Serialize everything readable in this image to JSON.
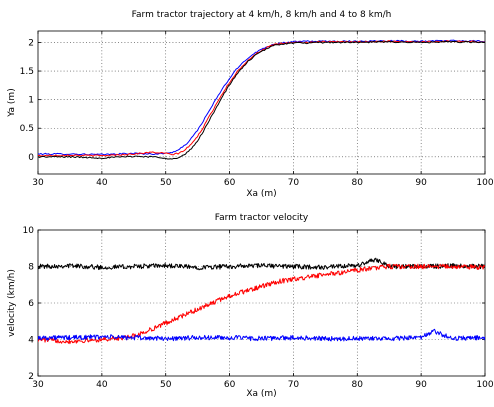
{
  "chart_data": [
    {
      "type": "line",
      "title": "Farm tractor trajectory at 4 km/h, 8 km/h and 4 to 8 km/h",
      "xlabel": "Xa (m)",
      "ylabel": "Ya (m)",
      "xlim": [
        30,
        100
      ],
      "ylim": [
        -0.3,
        2.2
      ],
      "xticks": [
        "30",
        "40",
        "50",
        "60",
        "70",
        "80",
        "90",
        "100"
      ],
      "yticks": [
        "0",
        "0.5",
        "1",
        "1.5",
        "2"
      ],
      "grid": true,
      "series": [
        {
          "color": "#0000ff",
          "x": [
            30,
            35,
            40,
            45,
            48,
            50,
            51,
            52,
            53,
            54,
            55,
            56,
            57,
            58,
            59,
            60,
            61,
            62,
            63,
            64,
            65,
            66,
            67,
            68,
            69,
            70,
            72,
            75,
            80,
            85,
            90,
            95,
            100
          ],
          "y": [
            0.05,
            0.05,
            0.04,
            0.06,
            0.05,
            0.06,
            0.08,
            0.12,
            0.2,
            0.32,
            0.47,
            0.65,
            0.84,
            1.03,
            1.21,
            1.37,
            1.52,
            1.64,
            1.74,
            1.82,
            1.88,
            1.93,
            1.97,
            1.99,
            2.0,
            2.01,
            2.02,
            2.02,
            2.02,
            2.03,
            2.02,
            2.03,
            2.02
          ]
        },
        {
          "color": "#ff0000",
          "x": [
            30,
            35,
            40,
            45,
            48,
            50,
            51,
            52,
            53,
            54,
            55,
            56,
            57,
            58,
            59,
            60,
            61,
            62,
            63,
            64,
            65,
            66,
            67,
            68,
            69,
            70,
            72,
            75,
            80,
            85,
            90,
            95,
            100
          ],
          "y": [
            0.02,
            0.03,
            0.02,
            0.05,
            0.08,
            0.06,
            0.04,
            0.06,
            0.12,
            0.22,
            0.36,
            0.54,
            0.74,
            0.94,
            1.13,
            1.3,
            1.46,
            1.59,
            1.7,
            1.79,
            1.86,
            1.92,
            1.96,
            1.98,
            1.99,
            2.0,
            2.0,
            2.01,
            2.01,
            2.02,
            2.01,
            2.02,
            2.01
          ]
        },
        {
          "color": "#000000",
          "x": [
            30,
            35,
            40,
            45,
            48,
            50,
            51,
            52,
            53,
            54,
            55,
            56,
            57,
            58,
            59,
            60,
            61,
            62,
            63,
            64,
            65,
            66,
            67,
            68,
            69,
            70,
            72,
            75,
            80,
            85,
            90,
            95,
            100
          ],
          "y": [
            0.0,
            0.0,
            -0.02,
            0.01,
            0.0,
            -0.02,
            -0.04,
            -0.02,
            0.04,
            0.14,
            0.28,
            0.47,
            0.67,
            0.88,
            1.08,
            1.26,
            1.42,
            1.56,
            1.68,
            1.77,
            1.84,
            1.9,
            1.95,
            1.97,
            1.98,
            1.99,
            1.99,
            2.0,
            2.0,
            2.01,
            2.0,
            2.01,
            2.0
          ]
        }
      ]
    },
    {
      "type": "line",
      "title": "Farm tractor velocity",
      "xlabel": "Xa (m)",
      "ylabel": "velocity (km/h)",
      "xlim": [
        30,
        100
      ],
      "ylim": [
        2,
        10
      ],
      "xticks": [
        "30",
        "40",
        "50",
        "60",
        "70",
        "80",
        "90",
        "100"
      ],
      "yticks": [
        "2",
        "4",
        "6",
        "8",
        "10"
      ],
      "grid": true,
      "series": [
        {
          "color": "#000000",
          "x": [
            30,
            35,
            40,
            45,
            50,
            55,
            60,
            65,
            70,
            75,
            80,
            83,
            85,
            90,
            95,
            100
          ],
          "y": [
            8.0,
            8.05,
            7.95,
            8.0,
            8.05,
            7.95,
            8.0,
            8.05,
            8.0,
            7.95,
            8.05,
            8.4,
            8.0,
            8.0,
            8.05,
            8.0
          ]
        },
        {
          "color": "#ff0000",
          "x": [
            30,
            35,
            40,
            44,
            46,
            48,
            50,
            52,
            54,
            56,
            58,
            60,
            62,
            64,
            66,
            68,
            70,
            72,
            74,
            76,
            78,
            80,
            82,
            85,
            90,
            95,
            100
          ],
          "y": [
            4.0,
            3.9,
            4.0,
            4.1,
            4.3,
            4.6,
            4.9,
            5.2,
            5.5,
            5.8,
            6.1,
            6.4,
            6.6,
            6.8,
            7.0,
            7.2,
            7.3,
            7.4,
            7.5,
            7.6,
            7.7,
            7.8,
            7.9,
            8.0,
            8.0,
            8.0,
            7.95
          ]
        },
        {
          "color": "#0000ff",
          "x": [
            30,
            35,
            40,
            45,
            50,
            55,
            60,
            65,
            70,
            75,
            80,
            85,
            90,
            92,
            95,
            100
          ],
          "y": [
            4.1,
            4.1,
            4.15,
            4.1,
            4.05,
            4.1,
            4.1,
            4.05,
            4.1,
            4.05,
            4.05,
            4.05,
            4.1,
            4.45,
            4.05,
            4.1
          ]
        }
      ]
    }
  ]
}
